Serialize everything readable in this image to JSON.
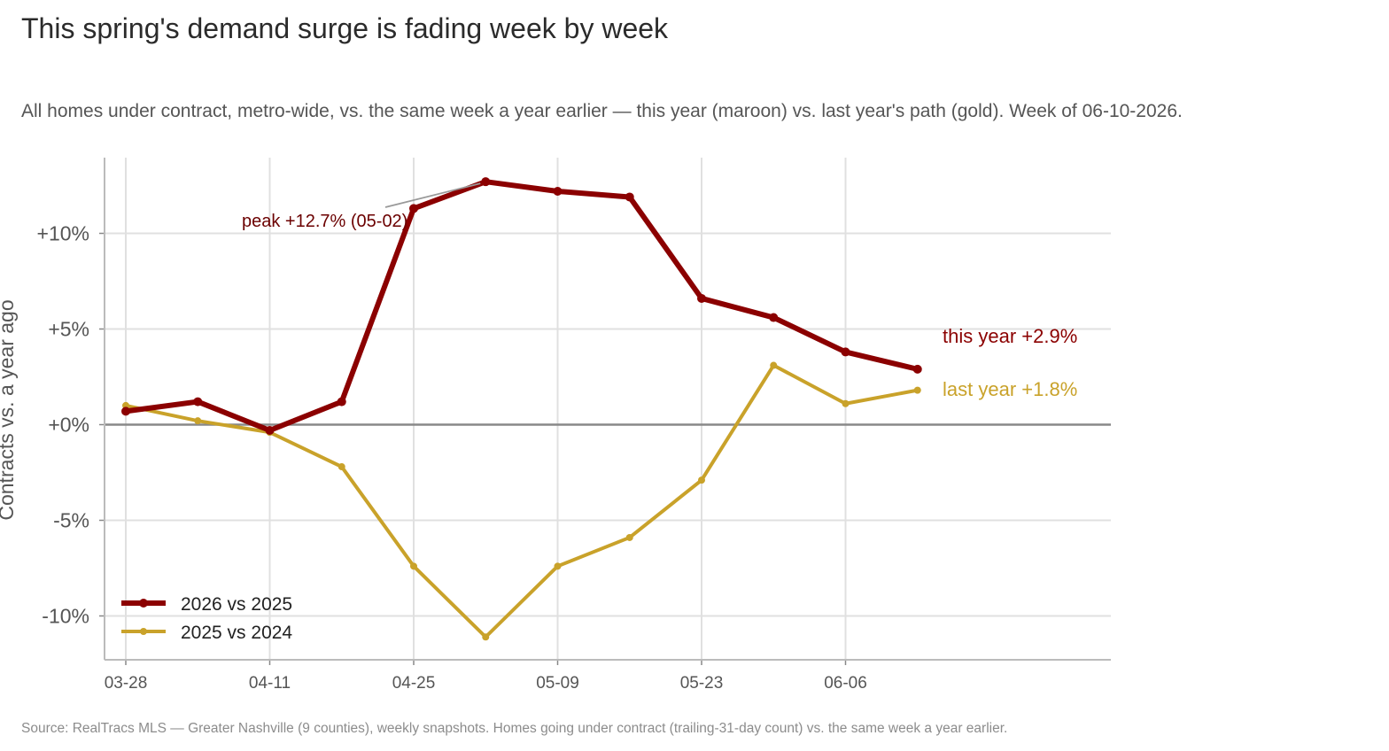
{
  "title": "This spring's demand surge is fading week by week",
  "subtitle": "All homes under contract, metro-wide, vs. the same week a year earlier — this year (maroon) vs. last year's path (gold). Week of 06-10-2026.",
  "source": "Source: RealTracs MLS — Greater Nashville (9 counties), weekly snapshots. Homes going under contract (trailing-31-day count) vs. the same week a year earlier.",
  "colors": {
    "this_year": "#8b0000",
    "last_year": "#c9a22a",
    "zero_line": "#888888",
    "grid": "#e0e0e0",
    "peak_text": "#6b0000"
  },
  "chart_data": {
    "type": "line",
    "x": [
      "03-28",
      "04-04",
      "04-11",
      "04-18",
      "04-25",
      "05-02",
      "05-09",
      "05-16",
      "05-23",
      "05-30",
      "06-06",
      "06-13"
    ],
    "x_ticks": [
      "03-28",
      "04-11",
      "04-25",
      "05-09",
      "05-23",
      "06-06"
    ],
    "ylabel": "Contracts vs. a year ago",
    "ylim": [
      -12.2,
      14.0
    ],
    "y_ticks": [
      10,
      5,
      0,
      -5,
      -10
    ],
    "y_tick_labels": [
      "+10%",
      "+5%",
      "+0%",
      "-5%",
      "-10%"
    ],
    "grid": true,
    "legend_position": "bottom-left",
    "series": [
      {
        "name": "2026 vs 2025",
        "values": [
          0.7,
          1.2,
          -0.3,
          1.2,
          11.3,
          12.7,
          12.2,
          11.9,
          6.6,
          5.6,
          3.8,
          2.9
        ]
      },
      {
        "name": "2025 vs 2024",
        "values": [
          1.0,
          0.2,
          -0.4,
          -2.2,
          -7.4,
          -11.1,
          -7.4,
          -5.9,
          -2.9,
          3.1,
          1.1,
          1.8
        ]
      }
    ],
    "annotations": {
      "peak": "peak +12.7% (05-02)",
      "end_this_year": "this year +2.9%",
      "end_last_year": "last year +1.8%"
    }
  }
}
